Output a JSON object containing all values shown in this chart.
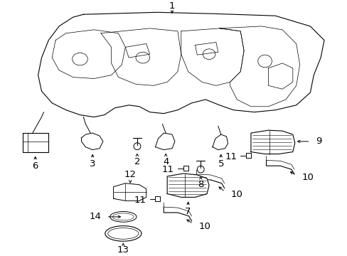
{
  "bg_color": "#ffffff",
  "line_color": "#000000",
  "figsize": [
    4.89,
    3.6
  ],
  "dpi": 100,
  "label_fontsize": 9.5
}
